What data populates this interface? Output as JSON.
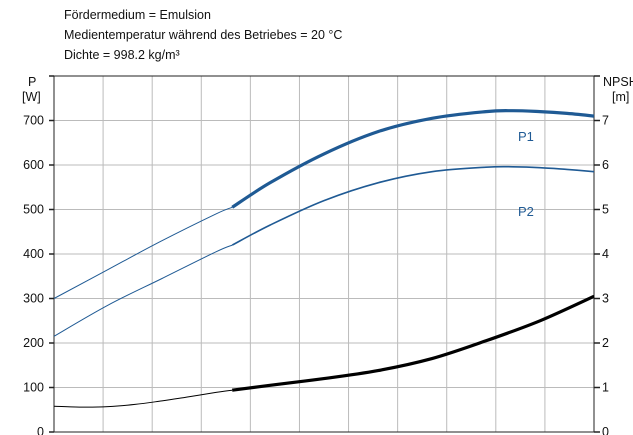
{
  "header": {
    "lines": [
      "Fördermedium = Emulsion",
      "Medientemperatur während des Betriebes = 20 °C",
      "Dichte = 998.2 kg/m³"
    ]
  },
  "chart_data": {
    "type": "line",
    "title": "",
    "left_axis": {
      "label_line1": "P",
      "label_line2": "[W]",
      "ylim": [
        0,
        800
      ],
      "ticks": [
        0,
        100,
        200,
        300,
        400,
        500,
        600,
        700
      ]
    },
    "right_axis": {
      "label_line1": "NPSH",
      "label_line2": "[m]",
      "ylim": [
        0,
        8
      ],
      "ticks": [
        0,
        1,
        2,
        3,
        4,
        5,
        6,
        7
      ]
    },
    "grid": true,
    "legend": "inline labels",
    "colors": {
      "power": "#1f5a94",
      "npsh": "#000000",
      "grid": "#bbbbbb"
    },
    "series": [
      {
        "name": "P1",
        "axis": "left",
        "color": "#1f5a94",
        "x": [
          0.0,
          0.1,
          0.2,
          0.3,
          0.33,
          0.4,
          0.5,
          0.6,
          0.7,
          0.8,
          0.85,
          0.9,
          0.95,
          1.0
        ],
        "values": [
          300,
          365,
          430,
          490,
          505,
          560,
          625,
          675,
          705,
          720,
          722,
          720,
          716,
          710
        ],
        "bold_from": 0.33
      },
      {
        "name": "P2",
        "axis": "left",
        "color": "#1f5a94",
        "x": [
          0.0,
          0.1,
          0.2,
          0.3,
          0.33,
          0.4,
          0.5,
          0.6,
          0.7,
          0.8,
          0.85,
          0.9,
          0.95,
          1.0
        ],
        "values": [
          215,
          285,
          345,
          405,
          420,
          465,
          520,
          560,
          585,
          595,
          596,
          594,
          590,
          585
        ],
        "bold_from": 0.33
      },
      {
        "name": "",
        "axis": "right",
        "color": "#000000",
        "x": [
          0.0,
          0.05,
          0.1,
          0.15,
          0.2,
          0.25,
          0.3,
          0.33,
          0.4,
          0.5,
          0.6,
          0.7,
          0.8,
          0.9,
          1.0
        ],
        "values": [
          0.58,
          0.56,
          0.57,
          0.62,
          0.7,
          0.79,
          0.89,
          0.94,
          1.05,
          1.2,
          1.38,
          1.65,
          2.05,
          2.5,
          3.05
        ],
        "bold_from": 0.33
      }
    ]
  }
}
